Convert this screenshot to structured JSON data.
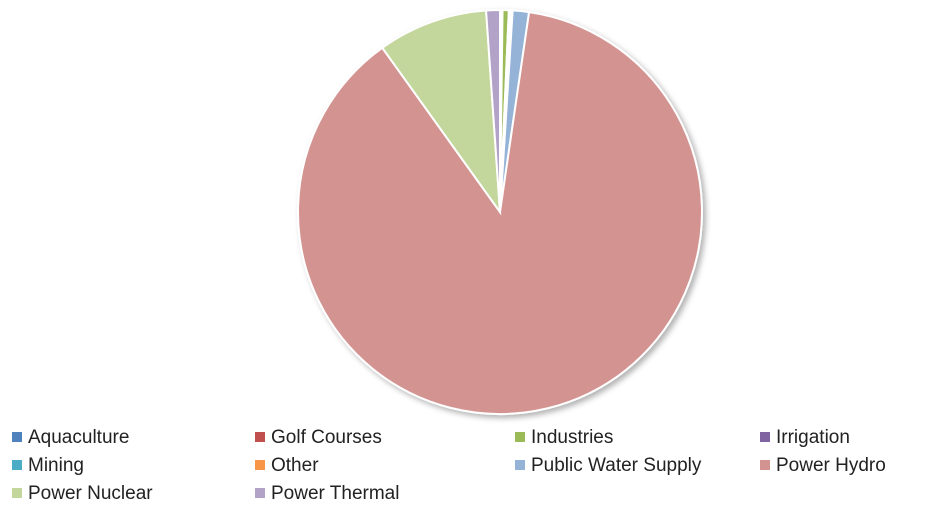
{
  "chart_data": {
    "type": "pie",
    "categories": [
      "Aquaculture",
      "Golf Courses",
      "Industries",
      "Irrigation",
      "Mining",
      "Other",
      "Public Water Supply",
      "Power Hydro",
      "Power Nuclear",
      "Power Thermal"
    ],
    "values": [
      0.1,
      0.1,
      0.5,
      0.1,
      0.1,
      0.1,
      1.3,
      87.8,
      8.8,
      1.1
    ],
    "colors": [
      "#4f81bd",
      "#c0504d",
      "#9bbb59",
      "#8064a2",
      "#4bacc6",
      "#f79646",
      "#95b3d7",
      "#d39391",
      "#c3d69b",
      "#b3a2c7"
    ],
    "legend": "bottom"
  }
}
